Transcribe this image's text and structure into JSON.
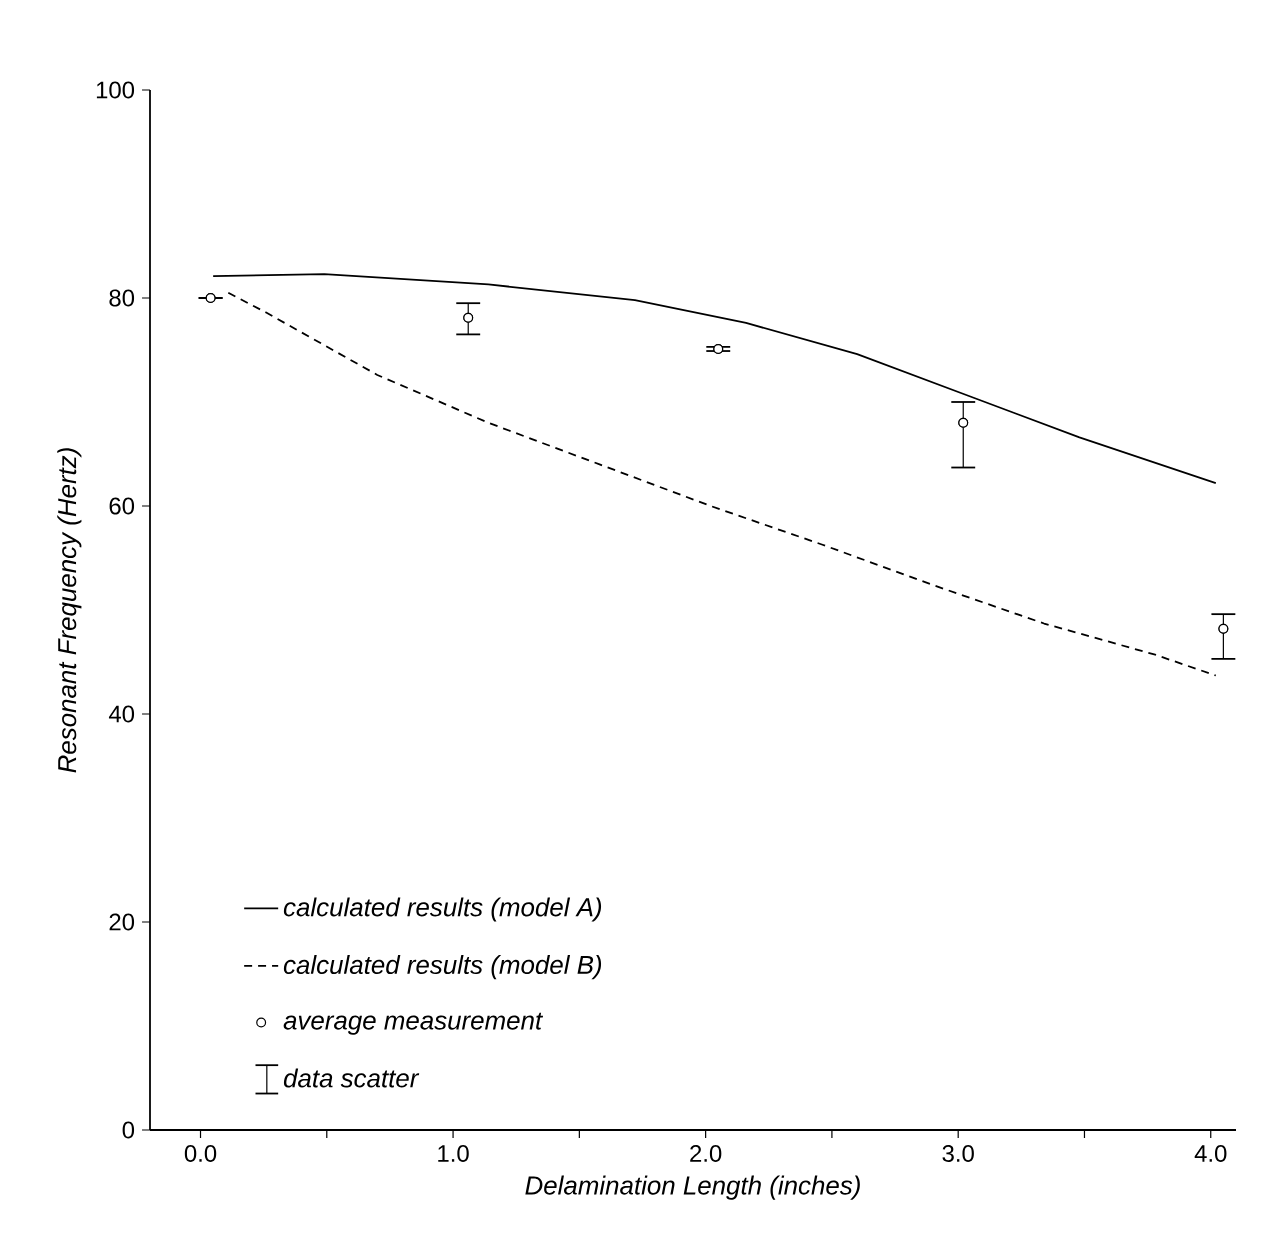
{
  "chart_data": {
    "type": "line",
    "xlabel": "Delamination Length (inches)",
    "ylabel": "Resonant Frequency (Hertz)",
    "xlim": [
      -0.2,
      4.1
    ],
    "ylim": [
      0,
      100
    ],
    "xticks": [
      {
        "value": 0,
        "label": "0.0"
      },
      {
        "value": 0.5,
        "label": null
      },
      {
        "value": 1,
        "label": "1.0"
      },
      {
        "value": 1.5,
        "label": null
      },
      {
        "value": 2,
        "label": "2.0"
      },
      {
        "value": 2.5,
        "label": null
      },
      {
        "value": 3,
        "label": "3.0"
      },
      {
        "value": 3.5,
        "label": null
      },
      {
        "value": 4,
        "label": "4.0"
      }
    ],
    "yticks": [
      0,
      20,
      40,
      60,
      80,
      100
    ],
    "legend": "bottom left",
    "series": [
      {
        "name": "calculated results (model A)",
        "line_style": "solid",
        "marker": "none",
        "color": "#000000",
        "x": [
          0.05,
          0.49,
          1.14,
          1.72,
          2.16,
          2.6,
          3.04,
          3.48,
          4.02
        ],
        "values": [
          82.1,
          82.3,
          81.3,
          79.8,
          77.6,
          74.6,
          70.6,
          66.6,
          62.2
        ]
      },
      {
        "name": "calculated results (model B)",
        "line_style": "dashed",
        "marker": "none",
        "color": "#000000",
        "x": [
          0.11,
          0.26,
          0.7,
          1.14,
          1.58,
          2.02,
          2.46,
          2.9,
          3.34,
          3.78,
          4.02
        ],
        "values": [
          80.5,
          78.6,
          72.6,
          68.0,
          64.0,
          60.0,
          56.3,
          52.4,
          48.7,
          45.7,
          43.7
        ]
      },
      {
        "name": "average measurement",
        "type": "scatter",
        "marker": "circle",
        "color": "#000000",
        "x": [
          0.04,
          1.06,
          2.05,
          3.02,
          4.05
        ],
        "values": [
          80.0,
          78.1,
          75.1,
          68.0,
          48.2
        ]
      },
      {
        "name": "data scatter",
        "type": "scatter",
        "color": "#000000",
        "x": [
          0.04,
          1.06,
          2.05,
          3.02,
          4.05
        ],
        "values": [
          80.0,
          78.1,
          75.1,
          68.0,
          48.2
        ],
        "errors": [
          null,
          [
            76.5,
            79.5
          ],
          [
            74.9,
            75.3
          ],
          [
            63.7,
            70.0
          ],
          [
            45.3,
            49.6
          ]
        ]
      }
    ]
  }
}
